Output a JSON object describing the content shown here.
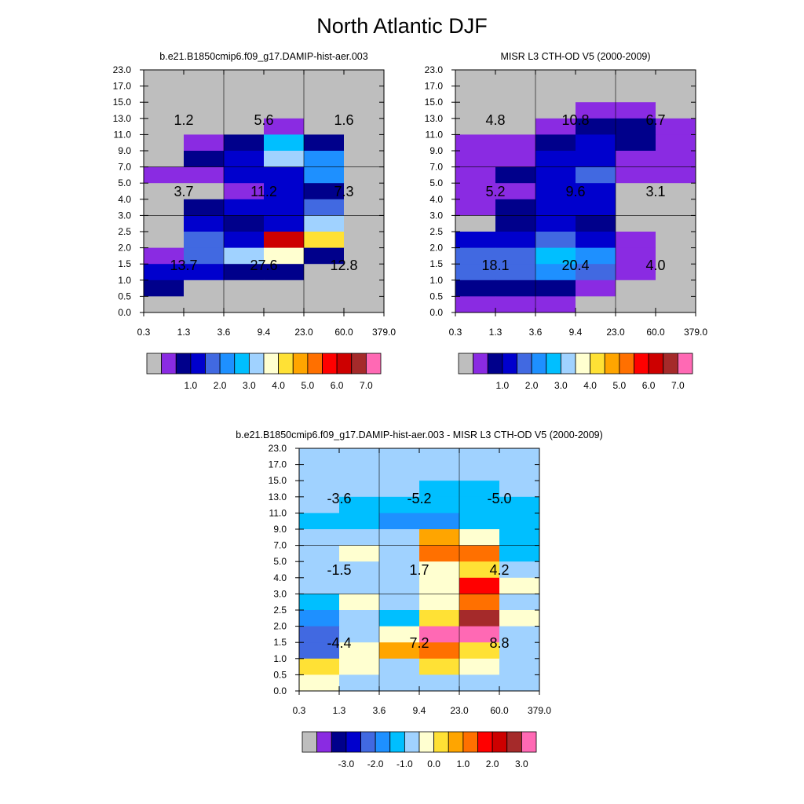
{
  "title": "North Atlantic DJF",
  "palette": [
    "#bebebe",
    "#8a2be2",
    "#00008b",
    "#0000cd",
    "#4169e1",
    "#1e90ff",
    "#00bfff",
    "#a0d2ff",
    "#ffffd0",
    "#ffe135",
    "#ffa500",
    "#ff7000",
    "#ff0000",
    "#cd0000",
    "#a52a2a",
    "#ff69b4"
  ],
  "chart_data": [
    {
      "type": "heatmap",
      "title": "b.e21.B1850cmip6.f09_g17.DAMIP-hist-aer.003",
      "x_tick_labels": [
        "0.3",
        "1.3",
        "3.6",
        "9.4",
        "23.0",
        "60.0",
        "379.0"
      ],
      "y_tick_labels": [
        "0.0",
        "0.5",
        "1.0",
        "1.5",
        "2.0",
        "2.5",
        "3.0",
        "4.0",
        "5.0",
        "7.0",
        "9.0",
        "11.0",
        "13.0",
        "15.0",
        "17.0",
        "23.0"
      ],
      "legend_labels": [
        "1.0",
        "2.0",
        "3.0",
        "4.0",
        "5.0",
        "6.0",
        "7.0"
      ],
      "cells": [
        [
          0,
          0,
          0,
          0,
          0,
          0
        ],
        [
          0,
          0,
          0,
          0,
          0,
          0
        ],
        [
          0,
          0,
          0,
          0,
          0,
          0
        ],
        [
          0,
          0,
          0,
          1,
          0,
          0
        ],
        [
          0,
          1,
          2,
          6,
          2,
          0
        ],
        [
          0,
          2,
          3,
          7,
          5,
          0
        ],
        [
          1,
          1,
          3,
          3,
          5,
          0
        ],
        [
          0,
          0,
          1,
          3,
          2,
          0
        ],
        [
          0,
          2,
          3,
          3,
          4,
          0
        ],
        [
          0,
          3,
          2,
          3,
          7,
          0
        ],
        [
          0,
          4,
          3,
          13,
          9,
          0
        ],
        [
          1,
          4,
          7,
          8,
          2,
          0
        ],
        [
          3,
          3,
          2,
          2,
          0,
          0
        ],
        [
          2,
          0,
          0,
          0,
          0,
          0
        ],
        [
          0,
          0,
          0,
          0,
          0,
          0
        ]
      ],
      "annotations": [
        [
          "1.2",
          "5.6",
          "1.6"
        ],
        [
          "3.7",
          "11.2",
          "7.3"
        ],
        [
          "13.7",
          "27.6",
          "12.8"
        ]
      ]
    },
    {
      "type": "heatmap",
      "title": "MISR L3 CTH-OD V5 (2000-2009)",
      "x_tick_labels": [
        "0.3",
        "1.3",
        "3.6",
        "9.4",
        "23.0",
        "60.0",
        "379.0"
      ],
      "y_tick_labels": [
        "0.0",
        "0.5",
        "1.0",
        "1.5",
        "2.0",
        "2.5",
        "3.0",
        "4.0",
        "5.0",
        "7.0",
        "9.0",
        "11.0",
        "13.0",
        "15.0",
        "17.0",
        "23.0"
      ],
      "legend_labels": [
        "1.0",
        "2.0",
        "3.0",
        "4.0",
        "5.0",
        "6.0",
        "7.0"
      ],
      "cells": [
        [
          0,
          0,
          0,
          0,
          0,
          0
        ],
        [
          0,
          0,
          0,
          0,
          0,
          0
        ],
        [
          0,
          0,
          0,
          1,
          1,
          0
        ],
        [
          0,
          0,
          1,
          2,
          2,
          1
        ],
        [
          1,
          1,
          2,
          3,
          2,
          1
        ],
        [
          1,
          1,
          3,
          3,
          1,
          1
        ],
        [
          1,
          2,
          3,
          4,
          1,
          1
        ],
        [
          1,
          1,
          3,
          3,
          0,
          0
        ],
        [
          1,
          2,
          3,
          3,
          0,
          0
        ],
        [
          0,
          2,
          3,
          2,
          0,
          0
        ],
        [
          3,
          3,
          4,
          3,
          1,
          0
        ],
        [
          4,
          4,
          6,
          5,
          1,
          0
        ],
        [
          4,
          4,
          5,
          4,
          1,
          0
        ],
        [
          2,
          2,
          2,
          1,
          0,
          0
        ],
        [
          1,
          1,
          1,
          0,
          0,
          0
        ]
      ],
      "annotations": [
        [
          "4.8",
          "10.8",
          "6.7"
        ],
        [
          "5.2",
          "9.6",
          "3.1"
        ],
        [
          "18.1",
          "20.4",
          "4.0"
        ]
      ]
    },
    {
      "type": "heatmap",
      "title": "b.e21.B1850cmip6.f09_g17.DAMIP-hist-aer.003 - MISR L3 CTH-OD V5 (2000-2009)",
      "x_tick_labels": [
        "0.3",
        "1.3",
        "3.6",
        "9.4",
        "23.0",
        "60.0",
        "379.0"
      ],
      "y_tick_labels": [
        "0.0",
        "0.5",
        "1.0",
        "1.5",
        "2.0",
        "2.5",
        "3.0",
        "4.0",
        "5.0",
        "7.0",
        "9.0",
        "11.0",
        "13.0",
        "15.0",
        "17.0",
        "23.0"
      ],
      "legend_labels": [
        "-3.0",
        "-2.0",
        "-1.0",
        "0.0",
        "1.0",
        "2.0",
        "3.0"
      ],
      "cells": [
        [
          7,
          7,
          7,
          7,
          7,
          7
        ],
        [
          7,
          7,
          7,
          7,
          7,
          7
        ],
        [
          7,
          7,
          7,
          6,
          6,
          7
        ],
        [
          7,
          6,
          6,
          6,
          6,
          6
        ],
        [
          6,
          6,
          5,
          5,
          6,
          6
        ],
        [
          7,
          7,
          7,
          10,
          8,
          6
        ],
        [
          7,
          8,
          7,
          11,
          11,
          6
        ],
        [
          7,
          7,
          7,
          8,
          9,
          7
        ],
        [
          7,
          7,
          7,
          8,
          12,
          8
        ],
        [
          6,
          8,
          7,
          8,
          11,
          7
        ],
        [
          5,
          7,
          6,
          9,
          14,
          8
        ],
        [
          4,
          7,
          8,
          15,
          15,
          7
        ],
        [
          4,
          8,
          10,
          11,
          9,
          7
        ],
        [
          9,
          8,
          7,
          9,
          8,
          7
        ],
        [
          8,
          7,
          7,
          7,
          7,
          7
        ]
      ],
      "annotations": [
        [
          "-3.6",
          "-5.2",
          "-5.0"
        ],
        [
          "-1.5",
          "1.7",
          "4.2"
        ],
        [
          "-4.4",
          "7.2",
          "8.8"
        ]
      ]
    }
  ]
}
